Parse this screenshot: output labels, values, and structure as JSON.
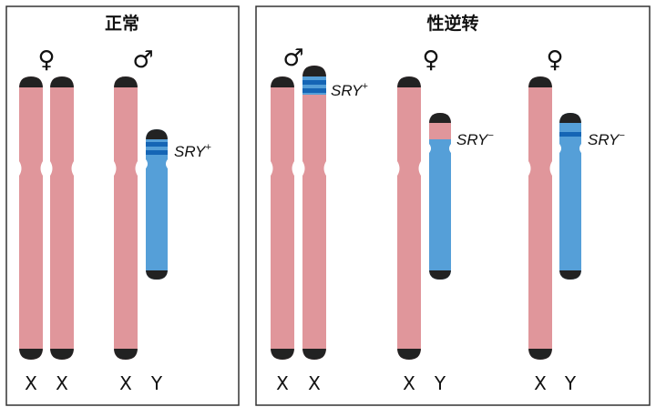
{
  "panels": {
    "normal": {
      "title": "正常",
      "female_symbol": "♀",
      "male_symbol": "♂",
      "labels": [
        "X",
        "X",
        "X",
        "Y"
      ],
      "sry_label": "SRY",
      "sry_sign": "+"
    },
    "reversal": {
      "title": "性逆转",
      "groups": [
        {
          "symbol": "♂",
          "labels": [
            "X",
            "X"
          ],
          "sry_label": "SRY",
          "sry_sign": "+"
        },
        {
          "symbol": "♀",
          "labels": [
            "X",
            "Y"
          ],
          "sry_label": "SRY",
          "sry_sign": "−"
        },
        {
          "symbol": "♀",
          "labels": [
            "X",
            "Y"
          ],
          "sry_label": "SRY",
          "sry_sign": "−"
        }
      ]
    }
  },
  "colors": {
    "x_chromosome": "#e0969b",
    "y_chromosome": "#559fd8",
    "sry_band": "#1565b5",
    "telomere": "#222222",
    "border": "#333333"
  }
}
